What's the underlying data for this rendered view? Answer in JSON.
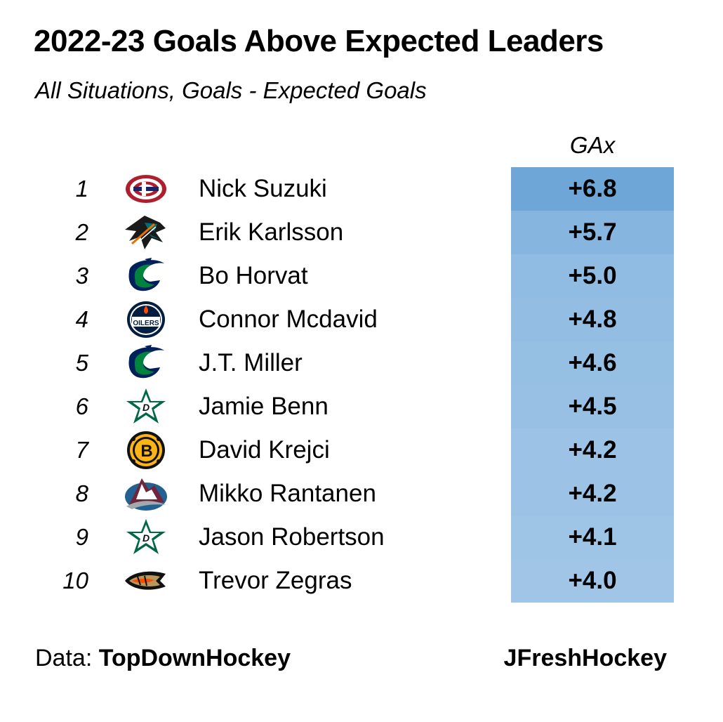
{
  "chart_data": {
    "type": "table",
    "title": "2022-23 Goals Above Expected Leaders",
    "subtitle": "All Situations, Goals - Expected Goals",
    "column_header": "GAx",
    "rows": [
      {
        "rank": "1",
        "name": "Nick Suzuki",
        "team_logo": "canadiens-logo-icon",
        "value": 6.8,
        "label": "+6.8",
        "color": "#6ea6d8"
      },
      {
        "rank": "2",
        "name": "Erik Karlsson",
        "team_logo": "sharks-logo-icon",
        "value": 5.7,
        "label": "+5.7",
        "color": "#86b5e0"
      },
      {
        "rank": "3",
        "name": "Bo Horvat",
        "team_logo": "canucks-logo-icon",
        "value": 5.0,
        "label": "+5.0",
        "color": "#90bbe2"
      },
      {
        "rank": "4",
        "name": "Connor Mcdavid",
        "team_logo": "oilers-logo-icon",
        "value": 4.8,
        "label": "+4.8",
        "color": "#93bde3"
      },
      {
        "rank": "5",
        "name": "J.T. Miller",
        "team_logo": "canucks-logo-icon",
        "value": 4.6,
        "label": "+4.6",
        "color": "#96bfe4"
      },
      {
        "rank": "6",
        "name": "Jamie Benn",
        "team_logo": "stars-logo-icon",
        "value": 4.5,
        "label": "+4.5",
        "color": "#98c0e4"
      },
      {
        "rank": "7",
        "name": "David Krejci",
        "team_logo": "bruins-logo-icon",
        "value": 4.2,
        "label": "+4.2",
        "color": "#9cc3e5"
      },
      {
        "rank": "8",
        "name": "Mikko Rantanen",
        "team_logo": "avalanche-logo-icon",
        "value": 4.2,
        "label": "+4.2",
        "color": "#9cc3e5"
      },
      {
        "rank": "9",
        "name": "Jason Robertson",
        "team_logo": "stars-logo-icon",
        "value": 4.1,
        "label": "+4.1",
        "color": "#9ec4e6"
      },
      {
        "rank": "10",
        "name": "Trevor Zegras",
        "team_logo": "ducks-logo-icon",
        "value": 4.0,
        "label": "+4.0",
        "color": "#a0c5e6"
      }
    ]
  },
  "footer": {
    "data_prefix": "Data: ",
    "data_source": "TopDownHockey",
    "credit": "JFreshHockey"
  }
}
